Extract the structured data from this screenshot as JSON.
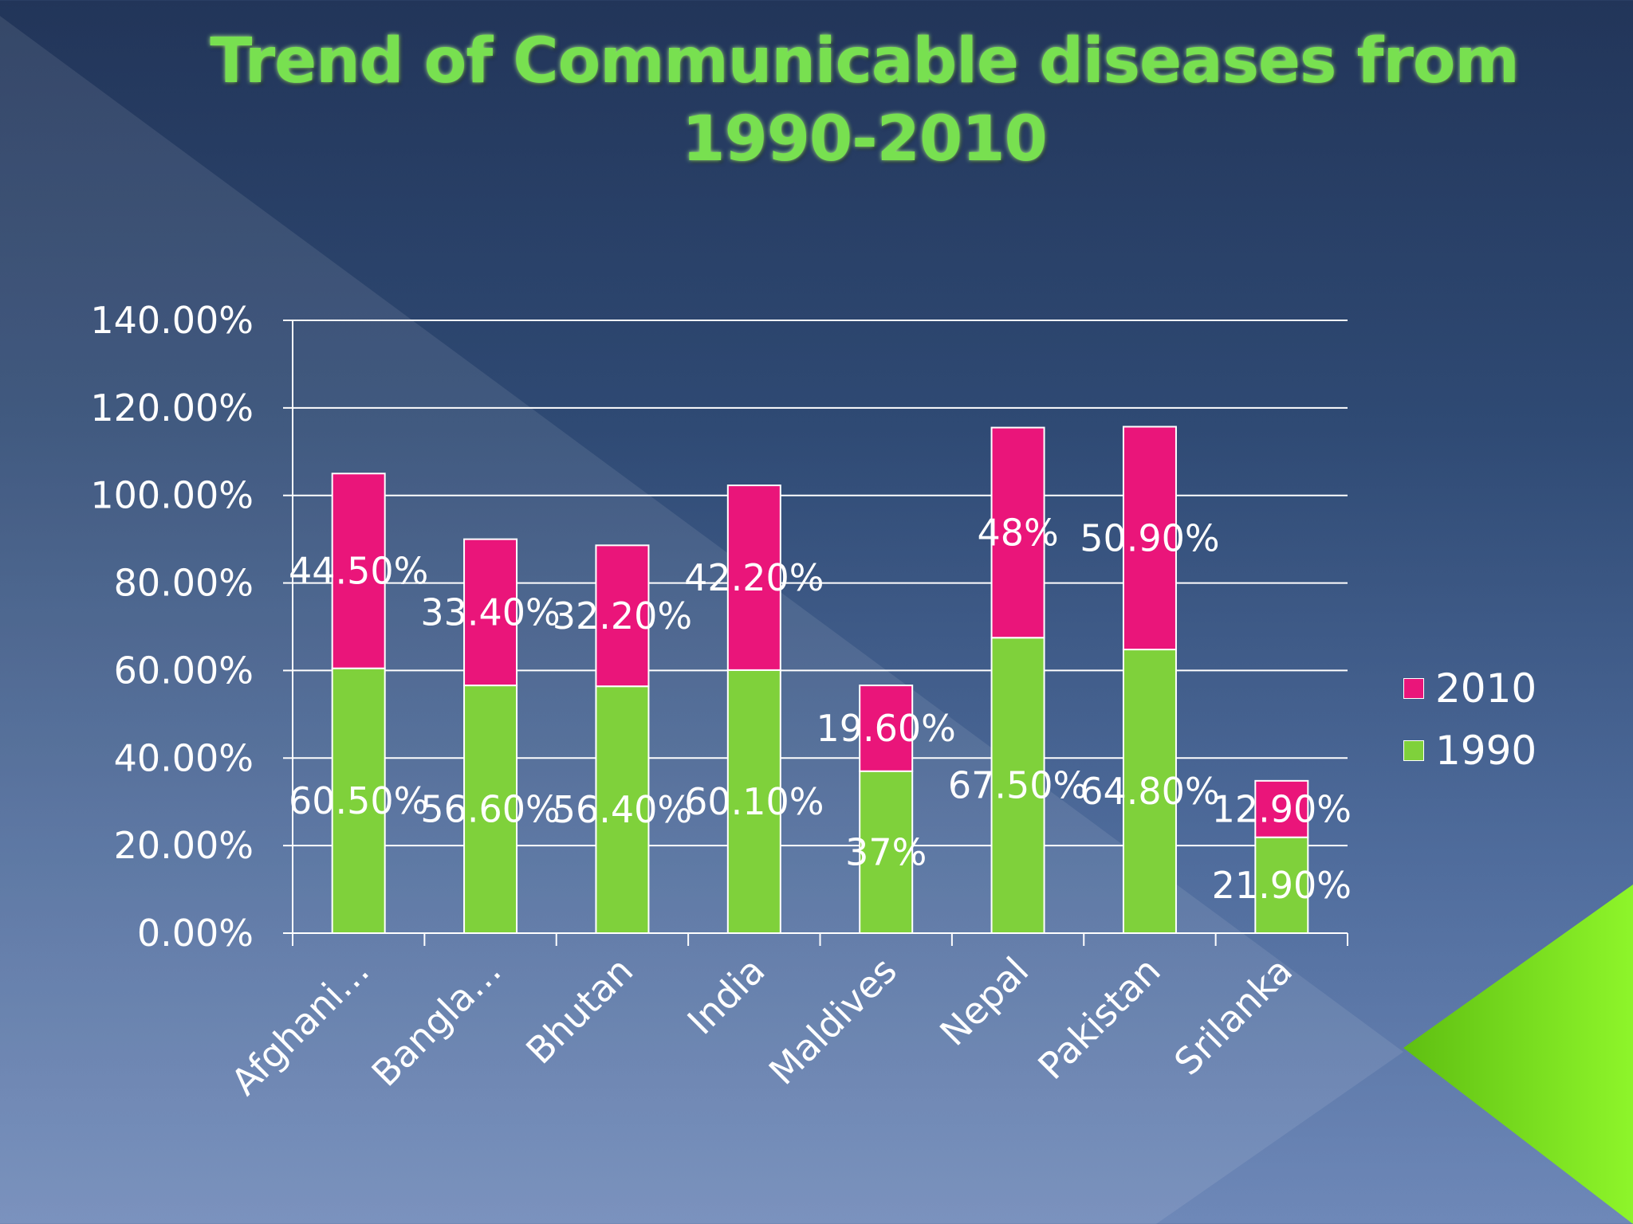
{
  "chart_data": {
    "type": "bar",
    "stacked": true,
    "title": "Trend of Communicable diseases from 1990-2010",
    "title_lines": [
      "Trend of Communicable diseases from",
      "1990-2010"
    ],
    "categories": [
      "Afghani…",
      "Bangla…",
      "Bhutan",
      "India",
      "Maldives",
      "Nepal",
      "Pakistan",
      "Srilanka"
    ],
    "series": [
      {
        "name": "1990",
        "color": "#7fd13b",
        "values": [
          60.5,
          56.6,
          56.4,
          60.1,
          37,
          67.5,
          64.8,
          21.9
        ],
        "labels": [
          "60.50%",
          "56.60%",
          "56.40%",
          "60.10%",
          "37%",
          "67.50%",
          "64.80%",
          "21.90%"
        ]
      },
      {
        "name": "2010",
        "color": "#ea157a",
        "values": [
          44.5,
          33.4,
          32.2,
          42.2,
          19.6,
          48,
          50.9,
          12.9
        ],
        "labels": [
          "44.50%",
          "33.40%",
          "32.20%",
          "42.20%",
          "19.60%",
          "48%",
          "50.90%",
          "12.90%"
        ]
      }
    ],
    "ylim": [
      0,
      140
    ],
    "yticks": [
      0,
      20,
      40,
      60,
      80,
      100,
      120,
      140
    ],
    "ytick_labels": [
      "0.00%",
      "20.00%",
      "40.00%",
      "60.00%",
      "80.00%",
      "100.00%",
      "120.00%",
      "140.00%"
    ],
    "grid": true,
    "legend_position": "right",
    "legend": [
      "2010",
      "1990"
    ],
    "xlabel": "",
    "ylabel": ""
  },
  "colors": {
    "title": "#78e050",
    "bar_1990": "#7fd13b",
    "bar_2010": "#ea157a",
    "grid": "#ffffff",
    "text": "#ffffff"
  }
}
